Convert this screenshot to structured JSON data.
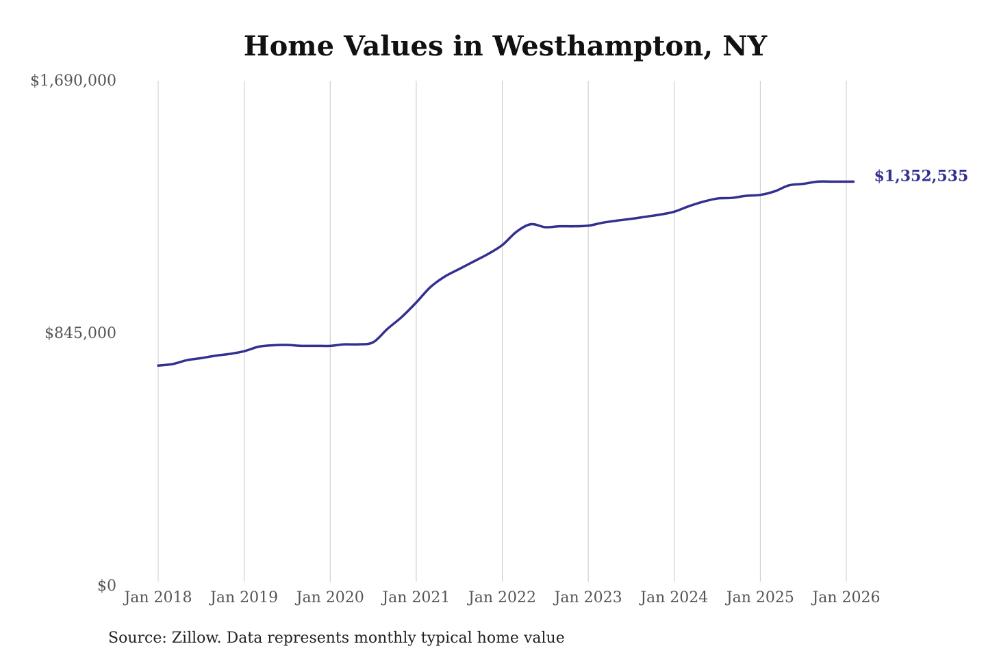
{
  "chart_data": {
    "type": "line",
    "title": "Home Values in Westhampton, NY",
    "source": "Source: Zillow. Data represents monthly typical home value",
    "xlabel": "",
    "ylabel": "",
    "ylim": [
      0,
      1690000
    ],
    "yticks": [
      {
        "value": 0,
        "label": "$0"
      },
      {
        "value": 845000,
        "label": "$845,000"
      },
      {
        "value": 1690000,
        "label": "$1,690,000"
      }
    ],
    "xticks": [
      {
        "value": "2018-01",
        "label": "Jan 2018"
      },
      {
        "value": "2019-01",
        "label": "Jan 2019"
      },
      {
        "value": "2020-01",
        "label": "Jan 2020"
      },
      {
        "value": "2021-01",
        "label": "Jan 2021"
      },
      {
        "value": "2022-01",
        "label": "Jan 2022"
      },
      {
        "value": "2023-01",
        "label": "Jan 2023"
      },
      {
        "value": "2024-01",
        "label": "Jan 2024"
      },
      {
        "value": "2025-01",
        "label": "Jan 2025"
      },
      {
        "value": "2026-01",
        "label": "Jan 2026"
      }
    ],
    "grid": {
      "vertical": true,
      "horizontal": false
    },
    "line_color": "#33308f",
    "end_label": "$1,352,535",
    "series": [
      {
        "x": [
          "2018-01",
          "2018-03",
          "2018-05",
          "2018-07",
          "2018-09",
          "2018-11",
          "2019-01",
          "2019-03",
          "2019-05",
          "2019-07",
          "2019-09",
          "2019-11",
          "2020-01",
          "2020-03",
          "2020-05",
          "2020-07",
          "2020-09",
          "2020-11",
          "2021-01",
          "2021-03",
          "2021-05",
          "2021-07",
          "2021-09",
          "2021-11",
          "2022-01",
          "2022-03",
          "2022-05",
          "2022-07",
          "2022-09",
          "2022-11",
          "2023-01",
          "2023-03",
          "2023-05",
          "2023-07",
          "2023-09",
          "2023-11",
          "2024-01",
          "2024-03",
          "2024-05",
          "2024-07",
          "2024-09",
          "2024-11",
          "2025-01",
          "2025-03",
          "2025-05",
          "2025-07",
          "2025-09",
          "2025-11",
          "2026-01",
          "2026-02"
        ],
        "values": [
          737000,
          742000,
          755000,
          762000,
          770000,
          776000,
          785000,
          800000,
          805000,
          806000,
          803000,
          803000,
          803000,
          808000,
          808000,
          815000,
          860000,
          900000,
          948000,
          1000000,
          1035000,
          1060000,
          1085000,
          1110000,
          1140000,
          1185000,
          1210000,
          1200000,
          1203000,
          1203000,
          1205000,
          1215000,
          1222000,
          1228000,
          1235000,
          1242000,
          1252000,
          1270000,
          1285000,
          1296000,
          1298000,
          1305000,
          1308000,
          1320000,
          1340000,
          1345000,
          1352535,
          1352535,
          1352535,
          1352535
        ]
      }
    ]
  }
}
